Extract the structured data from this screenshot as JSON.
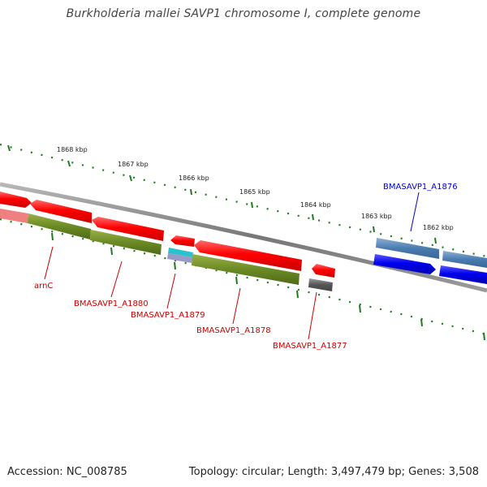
{
  "title": "Burkholderia mallei SAVP1 chromosome I, complete genome",
  "footer": {
    "accession": "Accession: NC_008785",
    "summary": "Topology: circular; Length: 3,497,479 bp; Genes: 3,508"
  },
  "colors": {
    "forward_gene": "#0000e8",
    "reverse_gene": "#ff0000",
    "cds_olive": "#6b8a24",
    "label_red": "#cc0000",
    "label_blue": "#0000cc",
    "tick_green": "#1f7a1f",
    "backbone": "#8a8a8a"
  },
  "scale_labels": [
    "1868 kbp",
    "1867 kbp",
    "1866 kbp",
    "1865 kbp",
    "1864 kbp",
    "1863 kbp",
    "1862 kbp"
  ],
  "gene_labels": {
    "arnC": "arnC",
    "a1880": "BMASAVP1_A1880",
    "a1879": "BMASAVP1_A1879",
    "a1878": "BMASAVP1_A1878",
    "a1877": "BMASAVP1_A1877",
    "a1876": "BMASAVP1_A1876"
  }
}
